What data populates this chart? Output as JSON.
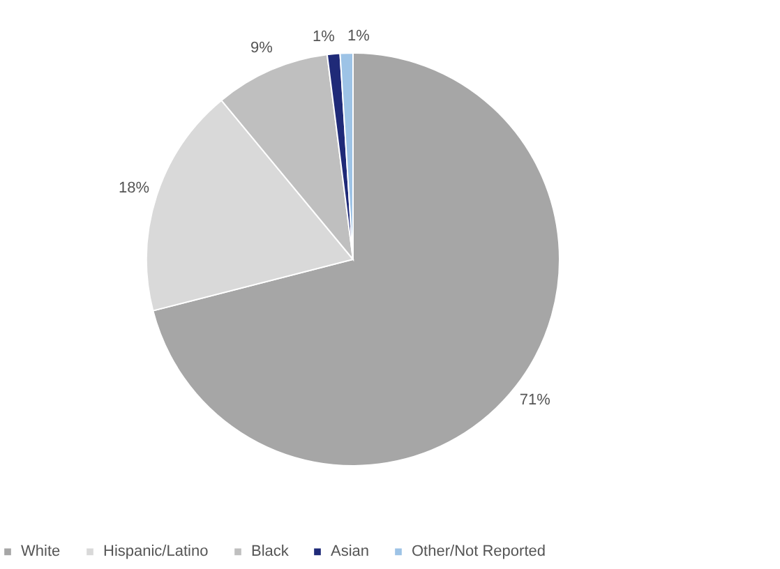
{
  "chart_data": {
    "type": "pie",
    "categories": [
      "White",
      "Hispanic/Latino",
      "Black",
      "Asian",
      "Other/Not Reported"
    ],
    "values": [
      71,
      18,
      9,
      1,
      1
    ],
    "colors": [
      "#a6a6a6",
      "#d9d9d9",
      "#bfbfbf",
      "#1f2a78",
      "#9dc3e6"
    ],
    "value_labels": [
      "71%",
      "18%",
      "9%",
      "1%",
      "1%"
    ],
    "legend": "bottom"
  }
}
